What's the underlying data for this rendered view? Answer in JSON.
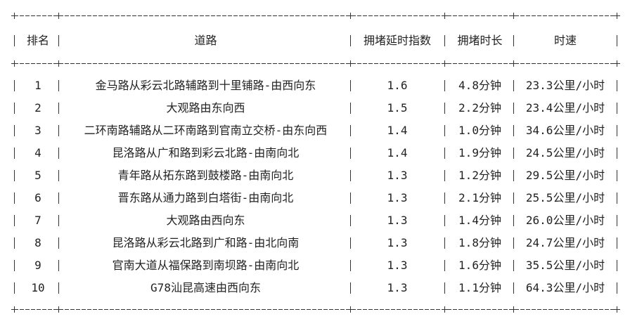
{
  "table": {
    "headers": [
      "排名",
      "道路",
      "拥堵延时指数",
      "拥堵时长",
      "时速"
    ],
    "rows": [
      [
        "1",
        "金马路从彩云北路辅路到十里铺路-由西向东",
        "1.6",
        "4.8分钟",
        "23.3公里/小时"
      ],
      [
        "2",
        "大观路由东向西",
        "1.5",
        "2.2分钟",
        "23.4公里/小时"
      ],
      [
        "3",
        "二环南路辅路从二环南路到官南立交桥-由东向西",
        "1.4",
        "1.0分钟",
        "34.6公里/小时"
      ],
      [
        "4",
        "昆洛路从广和路到彩云北路-由南向北",
        "1.4",
        "1.9分钟",
        "24.5公里/小时"
      ],
      [
        "5",
        "青年路从拓东路到鼓楼路-由南向北",
        "1.3",
        "1.2分钟",
        "29.5公里/小时"
      ],
      [
        "6",
        "晋东路从通力路到白塔街-由南向北",
        "1.3",
        "2.1分钟",
        "25.5公里/小时"
      ],
      [
        "7",
        "大观路由西向东",
        "1.3",
        "1.4分钟",
        "26.0公里/小时"
      ],
      [
        "8",
        "昆洛路从彩云北路到广和路-由北向南",
        "1.3",
        "1.8分钟",
        "24.7公里/小时"
      ],
      [
        "9",
        "官南大道从福保路到南坝路-由南向北",
        "1.3",
        "1.6分钟",
        "35.5公里/小时"
      ],
      [
        "10",
        "G78汕昆高速由西向东",
        "1.3",
        "1.1分钟",
        "64.3公里/小时"
      ]
    ]
  }
}
